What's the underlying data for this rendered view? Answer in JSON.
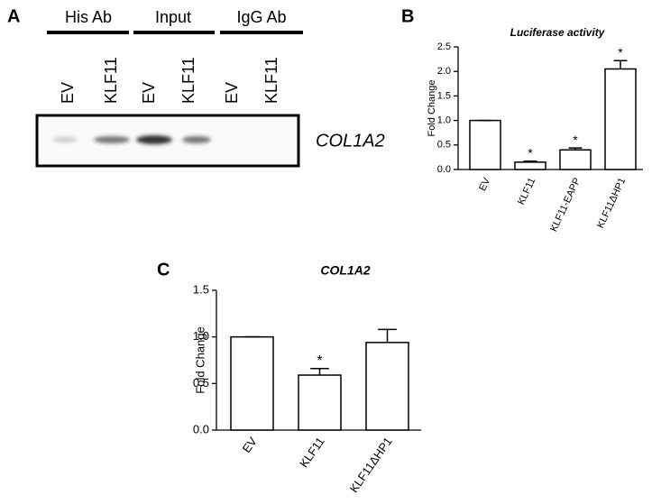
{
  "panel_labels": [
    "A",
    "B",
    "C"
  ],
  "gel": {
    "groups": [
      "His Ab",
      "Input",
      "IgG Ab"
    ],
    "lanes": [
      "EV",
      "KLF11",
      "EV",
      "KLF11",
      "EV",
      "KLF11"
    ],
    "gene": "COL1A2"
  },
  "chart_data": [
    {
      "type": "bar",
      "title": "Luciferase activity",
      "ylabel": "Fold Change",
      "categories": [
        "EV",
        "KLF11",
        "KLF11-EAPP",
        "KLF11ΔHP1"
      ],
      "values": [
        1.0,
        0.15,
        0.4,
        2.05
      ],
      "errors": [
        0,
        0.02,
        0.04,
        0.17
      ],
      "significance": [
        null,
        "*",
        "*",
        "*"
      ],
      "color": "#ffffff",
      "ylim": [
        0,
        2.5
      ],
      "yticks": [
        {
          "value": 0,
          "label": "0.0"
        },
        0.5,
        {
          "value": 1,
          "label": "1.0"
        },
        1.5,
        {
          "value": 2,
          "label": "2.0"
        },
        2.5
      ],
      "grid": false
    },
    {
      "type": "bar",
      "title": "COL1A2",
      "ylabel": "Fold Change",
      "categories": [
        "EV",
        "KLF11",
        "KLF11ΔHP1"
      ],
      "values": [
        1.0,
        0.59,
        0.94
      ],
      "errors": [
        0,
        0.07,
        0.14
      ],
      "significance": [
        null,
        "*",
        null
      ],
      "color": "#ffffff",
      "ylim": [
        0,
        1.5
      ],
      "yticks": [
        {
          "value": 0,
          "label": "0.0"
        },
        0.5,
        {
          "value": 1,
          "label": "1.0"
        },
        1.5
      ],
      "grid": false
    }
  ]
}
